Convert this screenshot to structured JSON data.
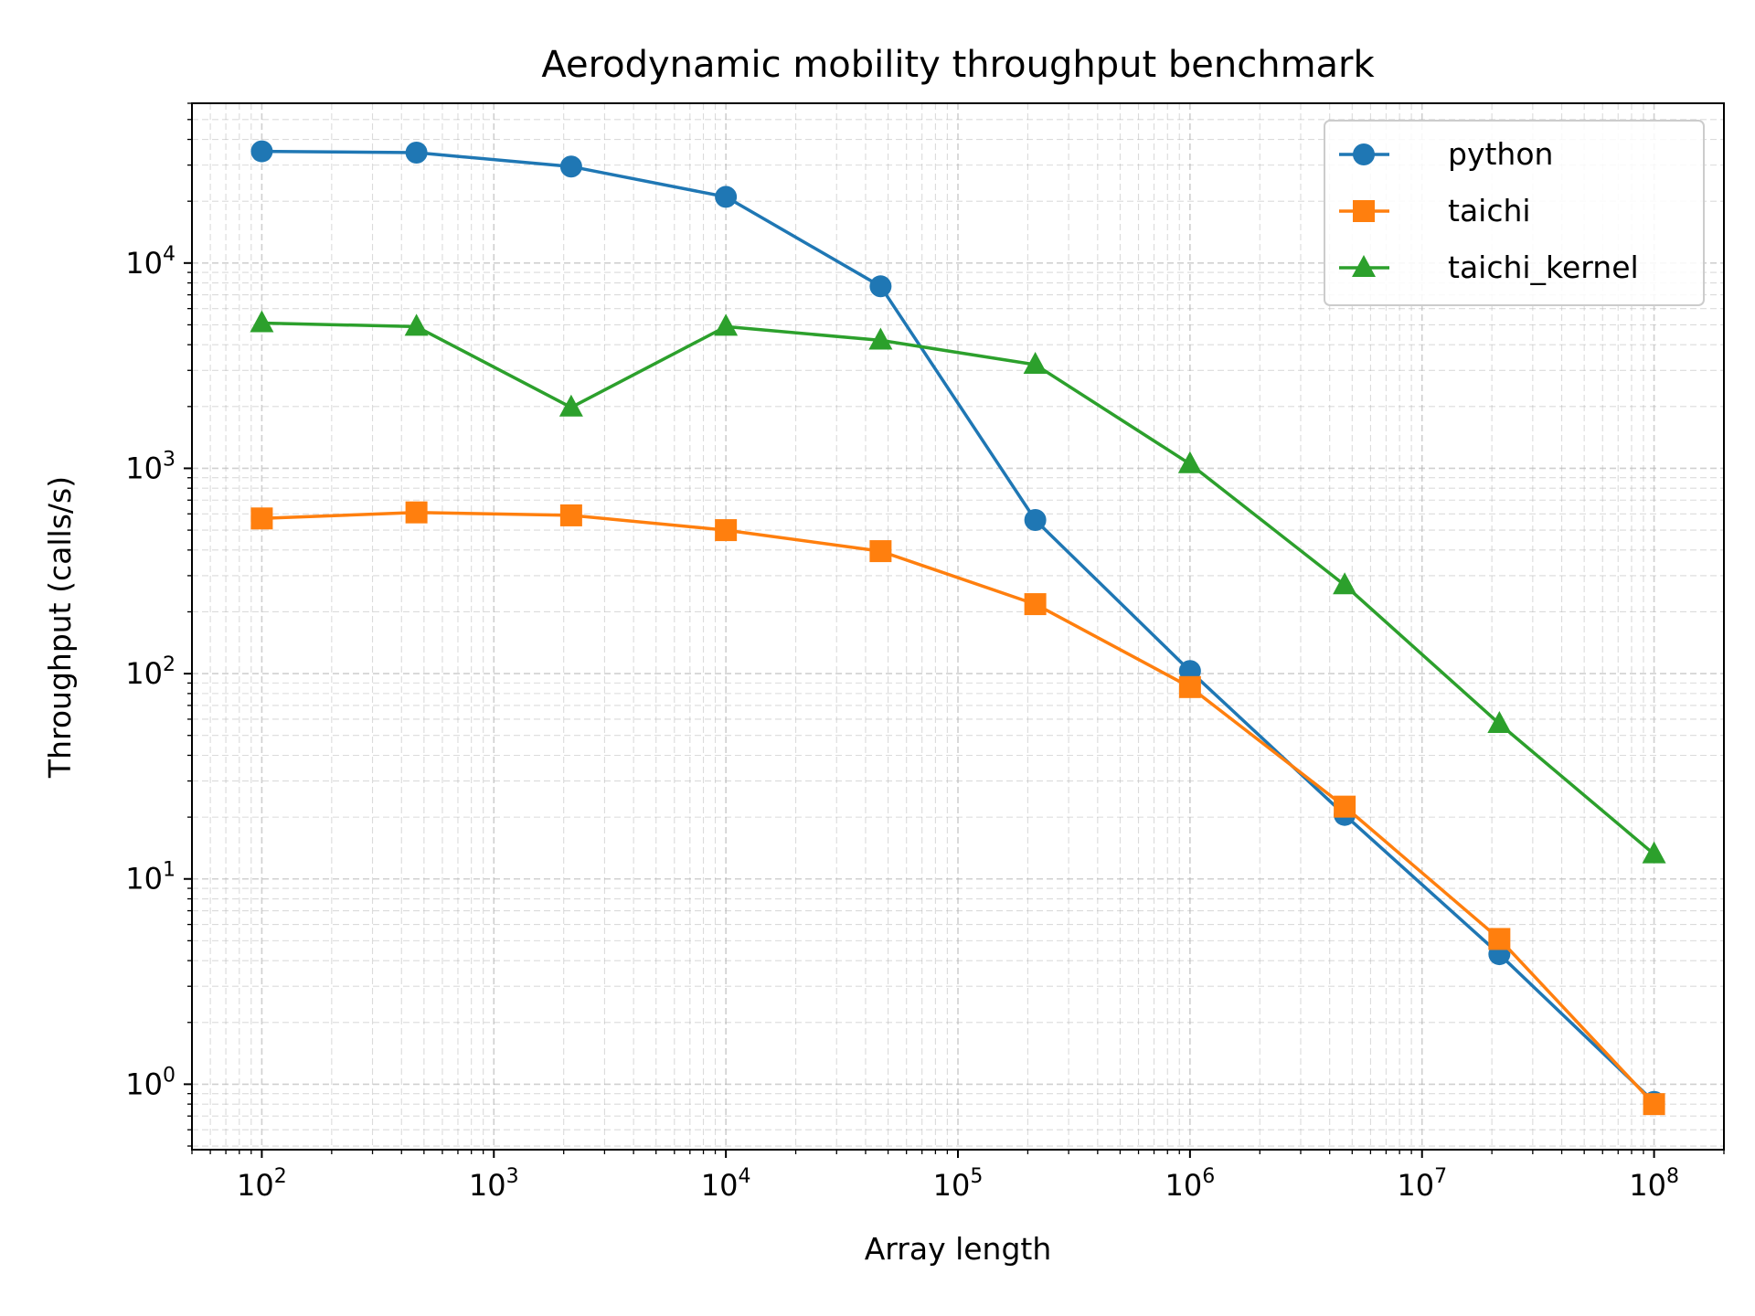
{
  "chart_data": {
    "type": "line",
    "title": "Aerodynamic mobility throughput benchmark",
    "xlabel": "Array length",
    "ylabel": "Throughput (calls/s)",
    "xscale": "log",
    "yscale": "log",
    "xlim": [
      50,
      200000000
    ],
    "ylim": [
      0.48,
      60000
    ],
    "grid": true,
    "legend": "top-right",
    "x_ticks": [
      {
        "value": 100,
        "base": "10",
        "exp": "2"
      },
      {
        "value": 1000,
        "base": "10",
        "exp": "3"
      },
      {
        "value": 10000,
        "base": "10",
        "exp": "4"
      },
      {
        "value": 100000,
        "base": "10",
        "exp": "5"
      },
      {
        "value": 1000000,
        "base": "10",
        "exp": "6"
      },
      {
        "value": 10000000,
        "base": "10",
        "exp": "7"
      },
      {
        "value": 100000000,
        "base": "10",
        "exp": "8"
      }
    ],
    "y_ticks": [
      {
        "value": 1,
        "base": "10",
        "exp": "0"
      },
      {
        "value": 10,
        "base": "10",
        "exp": "1"
      },
      {
        "value": 100,
        "base": "10",
        "exp": "2"
      },
      {
        "value": 1000,
        "base": "10",
        "exp": "3"
      },
      {
        "value": 10000,
        "base": "10",
        "exp": "4"
      }
    ],
    "x": [
      100,
      464,
      2154,
      10000,
      46416,
      215443,
      1000000,
      4641589,
      21544347,
      100000000
    ],
    "series": [
      {
        "name": "python",
        "color": "#1f77b4",
        "marker": "circle",
        "values": [
          35000,
          34500,
          29500,
          21000,
          7700,
          560,
          103,
          20.5,
          4.3,
          0.82
        ]
      },
      {
        "name": "taichi",
        "color": "#ff7f0e",
        "marker": "square",
        "values": [
          570,
          610,
          590,
          500,
          395,
          218,
          86,
          22.5,
          5.1,
          0.8
        ]
      },
      {
        "name": "taichi_kernel",
        "color": "#2ca02c",
        "marker": "triangle",
        "values": [
          5100,
          4900,
          1980,
          4900,
          4200,
          3200,
          1050,
          270,
          57,
          13.2
        ]
      }
    ]
  }
}
